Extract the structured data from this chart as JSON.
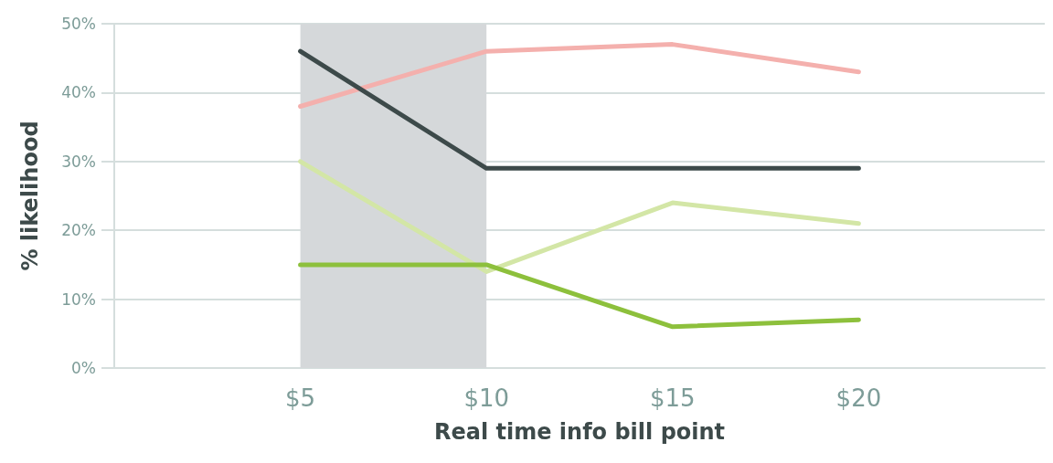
{
  "chart_data": {
    "type": "line",
    "xlabel": "Real time info bill point",
    "ylabel": "% likelihood",
    "x": [
      5,
      10,
      15,
      20
    ],
    "series": [
      {
        "color": "#f4b0ad",
        "values": [
          38,
          46,
          47,
          43
        ]
      },
      {
        "color": "#3d4a4a",
        "values": [
          46,
          29,
          29,
          29
        ]
      },
      {
        "color": "#d3e6a6",
        "values": [
          30,
          14,
          24,
          21
        ]
      },
      {
        "color": "#8dc03c",
        "values": [
          15,
          15,
          6,
          7
        ]
      }
    ],
    "xlim": [
      0,
      25
    ],
    "xticks": [
      {
        "value": 5,
        "label": "$5"
      },
      {
        "value": 10,
        "label": "$10"
      },
      {
        "value": 15,
        "label": "$15"
      },
      {
        "value": 20,
        "label": "$20"
      }
    ],
    "ylim": [
      0,
      50
    ],
    "yticks": [
      {
        "value": 0,
        "label": "0%"
      },
      {
        "value": 10,
        "label": "10%"
      },
      {
        "value": 20,
        "label": "20%"
      },
      {
        "value": 30,
        "label": "30%"
      },
      {
        "value": 40,
        "label": "40%"
      },
      {
        "value": 50,
        "label": "50%"
      }
    ],
    "bands": [
      {
        "axis": "x",
        "from": 5,
        "to": 10,
        "color": "#d5d8da"
      }
    ],
    "grid": "y",
    "marker": "none",
    "line_style": "solid"
  }
}
